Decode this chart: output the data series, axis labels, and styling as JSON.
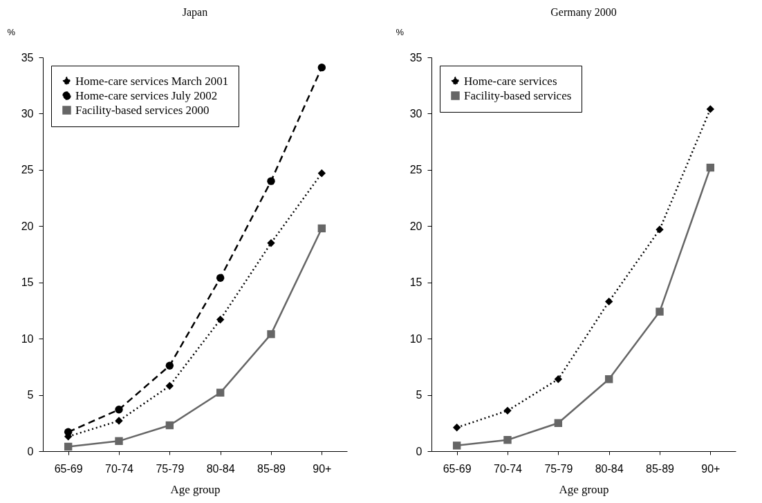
{
  "chart_data": [
    {
      "type": "line",
      "title": "Japan",
      "ylabel": "%",
      "xlabel": "Age group",
      "categories": [
        "65-69",
        "70-74",
        "75-79",
        "80-84",
        "85-89",
        "90+"
      ],
      "ylim": [
        0,
        35
      ],
      "yticks": [
        0,
        5,
        10,
        15,
        20,
        25,
        30,
        35
      ],
      "grid": false,
      "legend": "top left",
      "series": [
        {
          "name": "Home-care services March 2001",
          "color": "#000000",
          "marker": "diamond",
          "line_style": "dotted",
          "values": [
            1.3,
            2.7,
            5.8,
            11.7,
            18.5,
            24.7
          ]
        },
        {
          "name": "Home-care services July 2002",
          "color": "#000000",
          "marker": "circle",
          "line_style": "dashed",
          "values": [
            1.7,
            3.7,
            7.6,
            15.4,
            24.0,
            34.1
          ]
        },
        {
          "name": "Facility-based services 2000",
          "color": "#666666",
          "marker": "square",
          "line_style": "solid",
          "values": [
            0.4,
            0.9,
            2.3,
            5.2,
            10.4,
            19.8
          ]
        }
      ]
    },
    {
      "type": "line",
      "title": "Germany 2000",
      "ylabel": "%",
      "xlabel": "Age group",
      "categories": [
        "65-69",
        "70-74",
        "75-79",
        "80-84",
        "85-89",
        "90+"
      ],
      "ylim": [
        0,
        35
      ],
      "yticks": [
        0,
        5,
        10,
        15,
        20,
        25,
        30,
        35
      ],
      "grid": false,
      "legend": "top left",
      "series": [
        {
          "name": "Home-care services",
          "color": "#000000",
          "marker": "diamond",
          "line_style": "dotted",
          "values": [
            2.1,
            3.6,
            6.4,
            13.3,
            19.7,
            30.4
          ]
        },
        {
          "name": "Facility-based services",
          "color": "#666666",
          "marker": "square",
          "line_style": "solid",
          "values": [
            0.5,
            1.0,
            2.5,
            6.4,
            12.4,
            25.2
          ]
        }
      ]
    }
  ]
}
